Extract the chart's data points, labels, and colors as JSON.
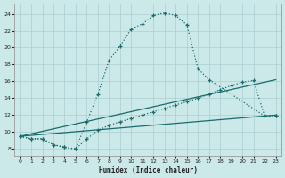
{
  "bg_color": "#cce9ea",
  "grid_color": "#aacfd2",
  "line_color": "#1a6b6b",
  "xlabel": "Humidex (Indice chaleur)",
  "xlim": [
    -0.5,
    23.5
  ],
  "ylim": [
    7.2,
    25.2
  ],
  "yticks": [
    8,
    10,
    12,
    14,
    16,
    18,
    20,
    22,
    24
  ],
  "xticks": [
    0,
    1,
    2,
    3,
    4,
    5,
    6,
    7,
    8,
    9,
    10,
    11,
    12,
    13,
    14,
    15,
    16,
    17,
    18,
    19,
    20,
    21,
    22,
    23
  ],
  "curve_main_x": [
    0,
    1,
    2,
    3,
    4,
    5,
    6,
    7,
    8,
    9,
    10,
    11,
    12,
    13,
    14,
    15,
    16,
    17,
    22,
    23
  ],
  "curve_main_y": [
    9.5,
    9.2,
    9.2,
    8.5,
    8.2,
    8.0,
    11.2,
    14.5,
    18.5,
    20.2,
    22.2,
    22.8,
    23.8,
    24.1,
    23.8,
    22.7,
    17.5,
    16.2,
    11.9,
    11.9
  ],
  "curve_sec_x": [
    0,
    1,
    2,
    3,
    4,
    5,
    6,
    7,
    8,
    9,
    10,
    11,
    12,
    13,
    14,
    15,
    16,
    17,
    18,
    19,
    20,
    21,
    22,
    23
  ],
  "curve_sec_y": [
    9.5,
    9.2,
    9.2,
    8.5,
    8.2,
    8.0,
    9.2,
    10.2,
    10.8,
    11.2,
    11.6,
    12.0,
    12.4,
    12.8,
    13.2,
    13.6,
    14.0,
    14.5,
    15.0,
    15.5,
    15.9,
    16.1,
    11.9,
    11.9
  ],
  "line1_x": [
    0,
    23
  ],
  "line1_y": [
    9.5,
    16.2
  ],
  "line2_x": [
    0,
    23
  ],
  "line2_y": [
    9.5,
    12.0
  ]
}
